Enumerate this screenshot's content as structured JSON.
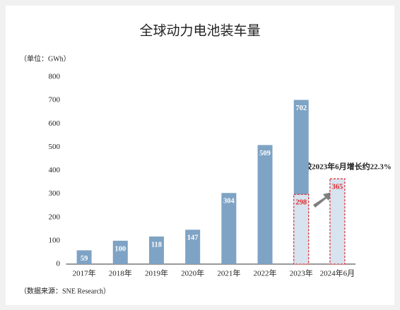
{
  "chart_data": {
    "type": "bar",
    "title": "全球动力电池装车量",
    "unit_label": "（单位：GWh）",
    "source": "（数据来源：SNE Research）",
    "annotation": "较2023年6月增长约22.3%",
    "categories": [
      "2017年",
      "2018年",
      "2019年",
      "2020年",
      "2021年",
      "2022年",
      "2023年",
      "2024年6月"
    ],
    "series": [
      {
        "color": "#7ea3c4",
        "values": [
          59,
          100,
          118,
          147,
          304,
          509,
          702,
          null
        ]
      },
      {
        "color": "#d7e3ef",
        "border_color": "#e0282a",
        "values": [
          null,
          null,
          null,
          null,
          null,
          null,
          298,
          365
        ]
      }
    ],
    "ylim": [
      0,
      800
    ],
    "yticks": [
      0,
      100,
      200,
      300,
      400,
      500,
      600,
      700,
      800
    ],
    "grid": false
  }
}
